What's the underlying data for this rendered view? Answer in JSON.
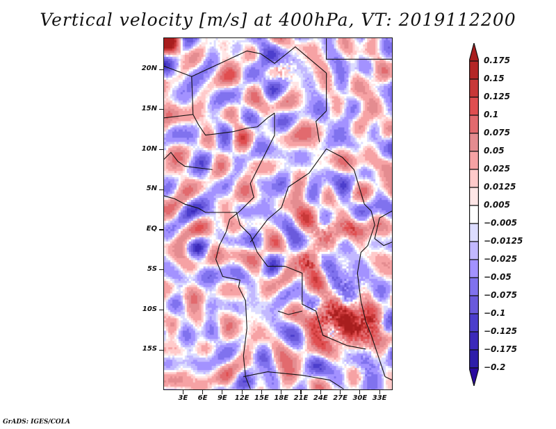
{
  "chart_data": {
    "type": "heatmap",
    "title": "Vertical velocity [m/s] at 400hPa, VT: 2019112200",
    "variable": "Vertical velocity",
    "units": "m/s",
    "level": "400hPa",
    "valid_time": "2019112200",
    "xlabel": "",
    "ylabel": "",
    "x_range_deg": [
      0,
      35
    ],
    "y_range_deg": [
      -20,
      24
    ],
    "x_ticks": [
      {
        "value": 3,
        "label": "3E"
      },
      {
        "value": 6,
        "label": "6E"
      },
      {
        "value": 9,
        "label": "9E"
      },
      {
        "value": 12,
        "label": "12E"
      },
      {
        "value": 15,
        "label": "15E"
      },
      {
        "value": 18,
        "label": "18E"
      },
      {
        "value": 21,
        "label": "21E"
      },
      {
        "value": 24,
        "label": "24E"
      },
      {
        "value": 27,
        "label": "27E"
      },
      {
        "value": 30,
        "label": "30E"
      },
      {
        "value": 33,
        "label": "33E"
      }
    ],
    "y_ticks": [
      {
        "value": 20,
        "label": "20N"
      },
      {
        "value": 15,
        "label": "15N"
      },
      {
        "value": 10,
        "label": "10N"
      },
      {
        "value": 5,
        "label": "5N"
      },
      {
        "value": 0,
        "label": "EQ"
      },
      {
        "value": -5,
        "label": "5S"
      },
      {
        "value": -10,
        "label": "10S"
      },
      {
        "value": -15,
        "label": "15S"
      }
    ],
    "colorbar": {
      "levels": [
        0.175,
        0.15,
        0.125,
        0.1,
        0.075,
        0.05,
        0.025,
        0.0125,
        0.005,
        -0.005,
        -0.0125,
        -0.025,
        -0.05,
        -0.075,
        -0.1,
        -0.125,
        -0.175,
        -0.2
      ],
      "labels": [
        "0.175",
        "0.15",
        "0.125",
        "0.1",
        "0.075",
        "0.05",
        "0.025",
        "0.0125",
        "0.005",
        "−0.005",
        "−0.0125",
        "−0.025",
        "−0.05",
        "−0.075",
        "−0.1",
        "−0.125",
        "−0.175",
        "−0.2"
      ],
      "over_color": "#a81e1e",
      "under_color": "#2a0a9e",
      "box_colors": [
        "#b42626",
        "#c83838",
        "#e04e50",
        "#e26a6e",
        "#e48c90",
        "#f6a2a4",
        "#ffcaca",
        "#ffe6e6",
        "#ffffff",
        "#dcdcff",
        "#c2b8ff",
        "#a392ff",
        "#8072ee",
        "#6a5adc",
        "#4c3ecc",
        "#3c2aba",
        "#2e1eaa"
      ]
    },
    "legend_position": "right",
    "grid": false,
    "notable_features": [
      "Strong upward motion (dark red) over southern DR Congo / Zambia border near 24E-30E, 9S-12S",
      "Predominantly weak mixed motion elsewhere"
    ]
  },
  "footer": {
    "credit": "GrADS: IGES/COLA"
  }
}
